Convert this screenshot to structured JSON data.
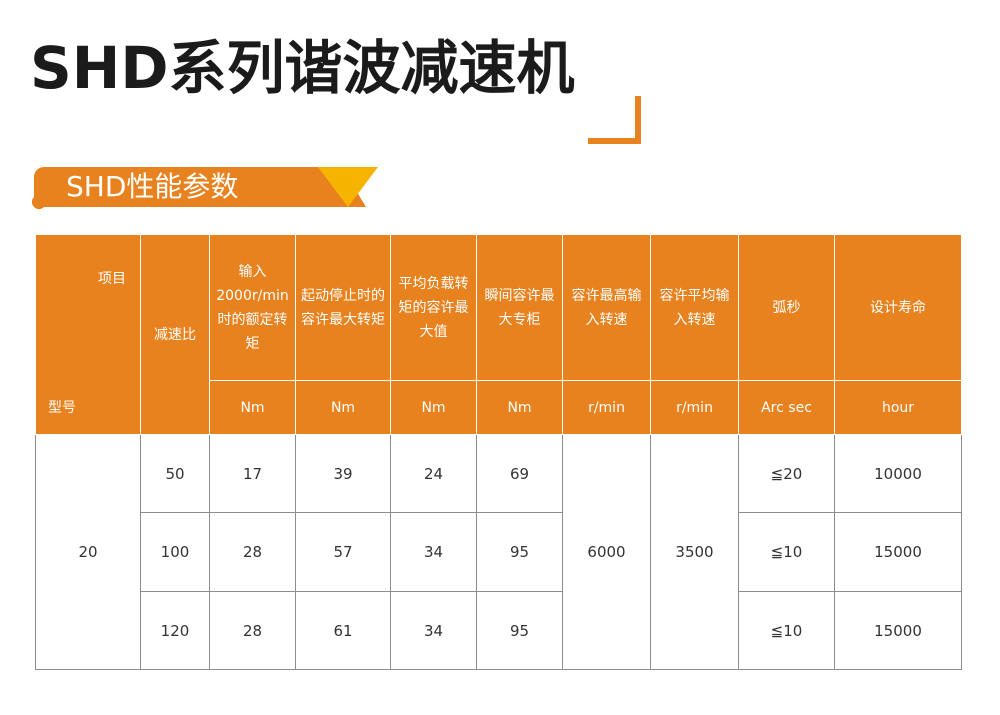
{
  "title": "SHD系列谐波减速机",
  "section_title": "SHD性能参数",
  "colors": {
    "accent": "#e8821e",
    "banner_triangle": "#f6b400",
    "title_text": "#1b1b1b"
  },
  "table": {
    "header": {
      "corner_top": "项目",
      "corner_bottom": "型号",
      "ratio": "减速比",
      "columns": [
        {
          "label": "输入2000r/min时的额定转矩",
          "unit": "Nm"
        },
        {
          "label": "起动停止时的容许最大转矩",
          "unit": "Nm"
        },
        {
          "label": "平均负载转矩的容许最大值",
          "unit": "Nm"
        },
        {
          "label": "瞬间容许最大专柜",
          "unit": "Nm"
        },
        {
          "label": "容许最高输入转速",
          "unit": "r/min"
        },
        {
          "label": "容许平均输入转速",
          "unit": "r/min"
        },
        {
          "label": "弧秒",
          "unit": "Arc sec"
        },
        {
          "label": "设计寿命",
          "unit": "hour"
        }
      ]
    },
    "model": "20",
    "max_input_speed": "6000",
    "avg_input_speed": "3500",
    "rows": [
      {
        "ratio": "50",
        "rated_torque": "17",
        "start_stop_torque": "39",
        "avg_load_torque": "24",
        "momentary_torque": "69",
        "arc_sec": "≦20",
        "life": "10000"
      },
      {
        "ratio": "100",
        "rated_torque": "28",
        "start_stop_torque": "57",
        "avg_load_torque": "34",
        "momentary_torque": "95",
        "arc_sec": "≦10",
        "life": "15000"
      },
      {
        "ratio": "120",
        "rated_torque": "28",
        "start_stop_torque": "61",
        "avg_load_torque": "34",
        "momentary_torque": "95",
        "arc_sec": "≦10",
        "life": "15000"
      }
    ]
  }
}
